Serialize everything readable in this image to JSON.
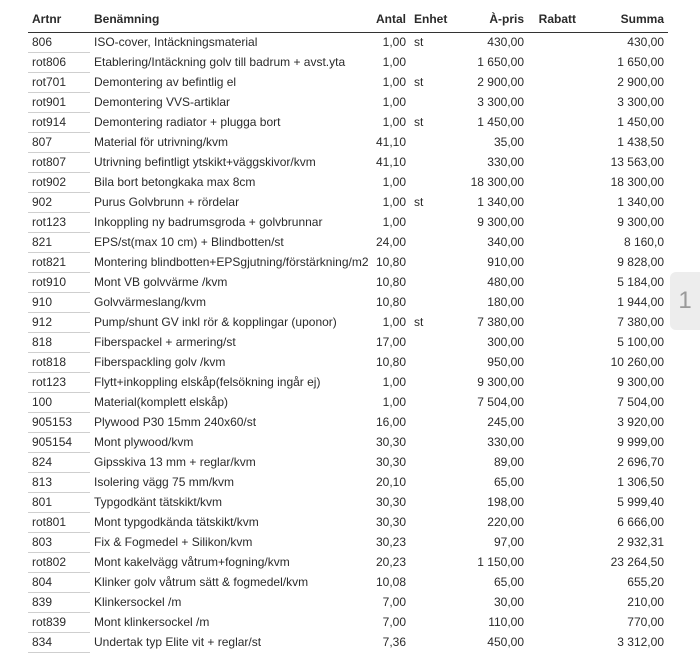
{
  "page_number": "1",
  "headers": {
    "artnr": "Artnr",
    "benamning": "Benämning",
    "antal": "Antal",
    "enhet": "Enhet",
    "apris": "À-pris",
    "rabatt": "Rabatt",
    "summa": "Summa"
  },
  "rows": [
    {
      "art": "806",
      "desc": "ISO-cover, Intäckningsmaterial",
      "qty": "1,00",
      "unit": "st",
      "price": "430,00",
      "rabatt": "",
      "sum": "430,00"
    },
    {
      "art": "rot806",
      "desc": "Etablering/Intäckning golv till badrum + avst.yta",
      "qty": "1,00",
      "unit": "",
      "price": "1 650,00",
      "rabatt": "",
      "sum": "1 650,00"
    },
    {
      "art": "rot701",
      "desc": "Demontering av befintlig el",
      "qty": "1,00",
      "unit": "st",
      "price": "2 900,00",
      "rabatt": "",
      "sum": "2 900,00"
    },
    {
      "art": "rot901",
      "desc": "Demontering VVS-artiklar",
      "qty": "1,00",
      "unit": "",
      "price": "3 300,00",
      "rabatt": "",
      "sum": "3 300,00"
    },
    {
      "art": "rot914",
      "desc": "Demontering radiator + plugga bort",
      "qty": "1,00",
      "unit": "st",
      "price": "1 450,00",
      "rabatt": "",
      "sum": "1 450,00"
    },
    {
      "art": "807",
      "desc": "Material för utrivning/kvm",
      "qty": "41,10",
      "unit": "",
      "price": "35,00",
      "rabatt": "",
      "sum": "1 438,50"
    },
    {
      "art": "rot807",
      "desc": "Utrivning befintligt ytskikt+väggskivor/kvm",
      "qty": "41,10",
      "unit": "",
      "price": "330,00",
      "rabatt": "",
      "sum": "13 563,00"
    },
    {
      "art": "rot902",
      "desc": "Bila bort betongkaka max 8cm",
      "qty": "1,00",
      "unit": "",
      "price": "18 300,00",
      "rabatt": "",
      "sum": "18 300,00"
    },
    {
      "art": "902",
      "desc": "Purus Golvbrunn + rördelar",
      "qty": "1,00",
      "unit": "st",
      "price": "1 340,00",
      "rabatt": "",
      "sum": "1 340,00"
    },
    {
      "art": "rot123",
      "desc": "Inkoppling ny badrumsgroda + golvbrunnar",
      "qty": "1,00",
      "unit": "",
      "price": "9 300,00",
      "rabatt": "",
      "sum": "9 300,00"
    },
    {
      "art": "821",
      "desc": "EPS/st(max 10 cm) + Blindbotten/st",
      "qty": "24,00",
      "unit": "",
      "price": "340,00",
      "rabatt": "",
      "sum": "8 160,0"
    },
    {
      "art": "rot821",
      "desc": "Montering blindbotten+EPSgjutning/förstärkning/m2",
      "qty": "10,80",
      "unit": "",
      "price": "910,00",
      "rabatt": "",
      "sum": "9 828,00"
    },
    {
      "art": "rot910",
      "desc": "Mont VB golvvärme /kvm",
      "qty": "10,80",
      "unit": "",
      "price": "480,00",
      "rabatt": "",
      "sum": "5 184,00"
    },
    {
      "art": "910",
      "desc": "Golvvärmeslang/kvm",
      "qty": "10,80",
      "unit": "",
      "price": "180,00",
      "rabatt": "",
      "sum": "1 944,00"
    },
    {
      "art": "912",
      "desc": "Pump/shunt GV inkl rör & kopplingar (uponor)",
      "qty": "1,00",
      "unit": "st",
      "price": "7 380,00",
      "rabatt": "",
      "sum": "7 380,00"
    },
    {
      "art": "818",
      "desc": "Fiberspackel + armering/st",
      "qty": "17,00",
      "unit": "",
      "price": "300,00",
      "rabatt": "",
      "sum": "5 100,00"
    },
    {
      "art": "rot818",
      "desc": "Fiberspackling golv /kvm",
      "qty": "10,80",
      "unit": "",
      "price": "950,00",
      "rabatt": "",
      "sum": "10 260,00"
    },
    {
      "art": "rot123",
      "desc": "Flytt+inkoppling elskåp(felsökning ingår ej)",
      "qty": "1,00",
      "unit": "",
      "price": "9 300,00",
      "rabatt": "",
      "sum": "9 300,00"
    },
    {
      "art": "100",
      "desc": "Material(komplett elskåp)",
      "qty": "1,00",
      "unit": "",
      "price": "7 504,00",
      "rabatt": "",
      "sum": "7 504,00"
    },
    {
      "art": "905153",
      "desc": "Plywood P30 15mm 240x60/st",
      "qty": "16,00",
      "unit": "",
      "price": "245,00",
      "rabatt": "",
      "sum": "3 920,00"
    },
    {
      "art": "905154",
      "desc": "Mont plywood/kvm",
      "qty": "30,30",
      "unit": "",
      "price": "330,00",
      "rabatt": "",
      "sum": "9 999,00"
    },
    {
      "art": "824",
      "desc": "Gipsskiva 13 mm + reglar/kvm",
      "qty": "30,30",
      "unit": "",
      "price": "89,00",
      "rabatt": "",
      "sum": "2 696,70"
    },
    {
      "art": "813",
      "desc": "Isolering vägg 75 mm/kvm",
      "qty": "20,10",
      "unit": "",
      "price": "65,00",
      "rabatt": "",
      "sum": "1 306,50"
    },
    {
      "art": "801",
      "desc": "Typgodkänt tätskikt/kvm",
      "qty": "30,30",
      "unit": "",
      "price": "198,00",
      "rabatt": "",
      "sum": "5 999,40"
    },
    {
      "art": "rot801",
      "desc": "Mont typgodkända tätskikt/kvm",
      "qty": "30,30",
      "unit": "",
      "price": "220,00",
      "rabatt": "",
      "sum": "6 666,00"
    },
    {
      "art": "803",
      "desc": "Fix & Fogmedel + Silikon/kvm",
      "qty": "30,23",
      "unit": "",
      "price": "97,00",
      "rabatt": "",
      "sum": "2 932,31"
    },
    {
      "art": "rot802",
      "desc": "Mont kakelvägg våtrum+fogning/kvm",
      "qty": "20,23",
      "unit": "",
      "price": "1 150,00",
      "rabatt": "",
      "sum": "23 264,50"
    },
    {
      "art": "804",
      "desc": "Klinker golv våtrum sätt & fogmedel/kvm",
      "qty": "10,08",
      "unit": "",
      "price": "65,00",
      "rabatt": "",
      "sum": "655,20"
    },
    {
      "art": "839",
      "desc": "Klinkersockel /m",
      "qty": "7,00",
      "unit": "",
      "price": "30,00",
      "rabatt": "",
      "sum": "210,00"
    },
    {
      "art": "rot839",
      "desc": "Mont klinkersockel /m",
      "qty": "7,00",
      "unit": "",
      "price": "110,00",
      "rabatt": "",
      "sum": "770,00"
    },
    {
      "art": "834",
      "desc": "Undertak typ Elite vit + reglar/st",
      "qty": "7,36",
      "unit": "",
      "price": "450,00",
      "rabatt": "",
      "sum": "3 312,00"
    }
  ]
}
